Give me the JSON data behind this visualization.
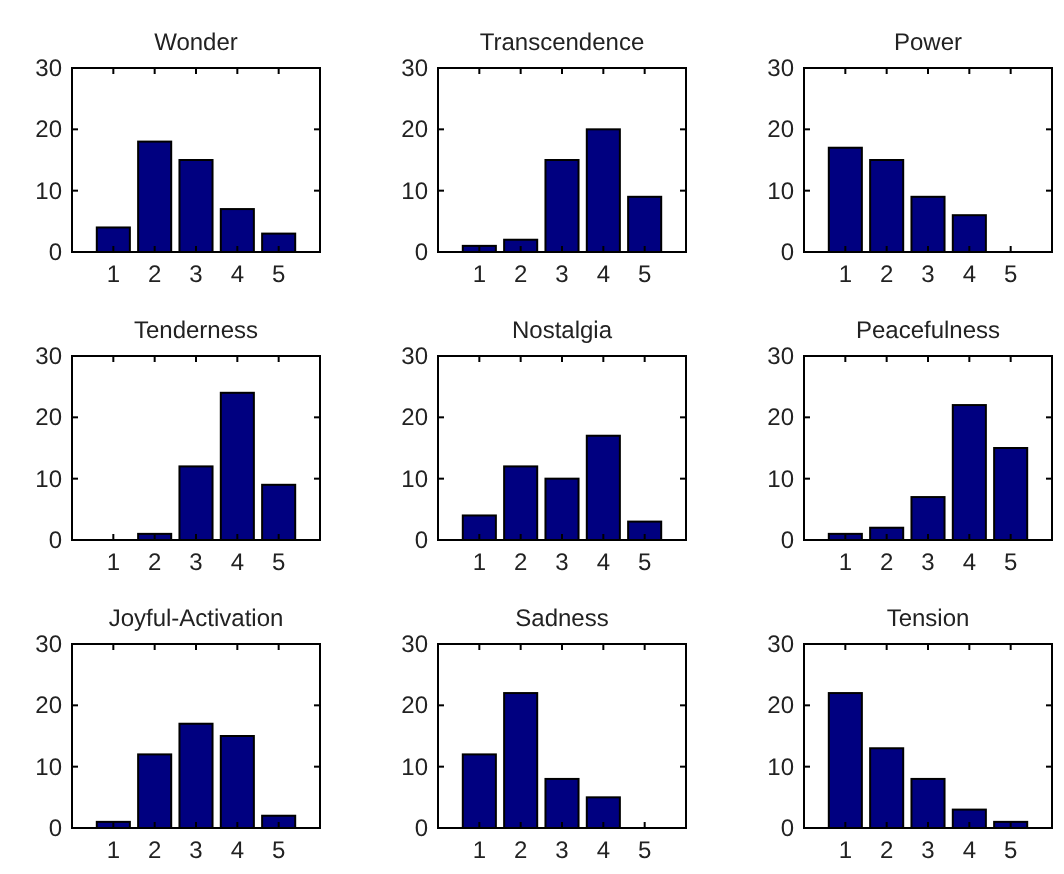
{
  "chart_data": [
    {
      "type": "bar",
      "title": "Wonder",
      "x": [
        1,
        2,
        3,
        4,
        5
      ],
      "values": [
        4,
        18,
        15,
        7,
        3
      ],
      "color": "#000080",
      "xlim": [
        0,
        6
      ],
      "xticks": [
        1,
        2,
        3,
        4,
        5
      ],
      "ylim": [
        0,
        30
      ],
      "yticks": [
        0,
        10,
        20,
        30
      ]
    },
    {
      "type": "bar",
      "title": "Transcendence",
      "x": [
        1,
        2,
        3,
        4,
        5
      ],
      "values": [
        1,
        2,
        15,
        20,
        9
      ],
      "color": "#000080",
      "xlim": [
        0,
        6
      ],
      "xticks": [
        1,
        2,
        3,
        4,
        5
      ],
      "ylim": [
        0,
        30
      ],
      "yticks": [
        0,
        10,
        20,
        30
      ]
    },
    {
      "type": "bar",
      "title": "Power",
      "x": [
        1,
        2,
        3,
        4,
        5
      ],
      "values": [
        17,
        15,
        9,
        6,
        0
      ],
      "color": "#000080",
      "xlim": [
        0,
        6
      ],
      "xticks": [
        1,
        2,
        3,
        4,
        5
      ],
      "ylim": [
        0,
        30
      ],
      "yticks": [
        0,
        10,
        20,
        30
      ]
    },
    {
      "type": "bar",
      "title": "Tenderness",
      "x": [
        1,
        2,
        3,
        4,
        5
      ],
      "values": [
        0,
        1,
        12,
        24,
        9
      ],
      "color": "#000080",
      "xlim": [
        0,
        6
      ],
      "xticks": [
        1,
        2,
        3,
        4,
        5
      ],
      "ylim": [
        0,
        30
      ],
      "yticks": [
        0,
        10,
        20,
        30
      ]
    },
    {
      "type": "bar",
      "title": "Nostalgia",
      "x": [
        1,
        2,
        3,
        4,
        5
      ],
      "values": [
        4,
        12,
        10,
        17,
        3
      ],
      "color": "#000080",
      "xlim": [
        0,
        6
      ],
      "xticks": [
        1,
        2,
        3,
        4,
        5
      ],
      "ylim": [
        0,
        30
      ],
      "yticks": [
        0,
        10,
        20,
        30
      ]
    },
    {
      "type": "bar",
      "title": "Peacefulness",
      "x": [
        1,
        2,
        3,
        4,
        5
      ],
      "values": [
        1,
        2,
        7,
        22,
        15
      ],
      "color": "#000080",
      "xlim": [
        0,
        6
      ],
      "xticks": [
        1,
        2,
        3,
        4,
        5
      ],
      "ylim": [
        0,
        30
      ],
      "yticks": [
        0,
        10,
        20,
        30
      ]
    },
    {
      "type": "bar",
      "title": "Joyful-Activation",
      "x": [
        1,
        2,
        3,
        4,
        5
      ],
      "values": [
        1,
        12,
        17,
        15,
        2
      ],
      "color": "#000080",
      "xlim": [
        0,
        6
      ],
      "xticks": [
        1,
        2,
        3,
        4,
        5
      ],
      "ylim": [
        0,
        30
      ],
      "yticks": [
        0,
        10,
        20,
        30
      ]
    },
    {
      "type": "bar",
      "title": "Sadness",
      "x": [
        1,
        2,
        3,
        4,
        5
      ],
      "values": [
        12,
        22,
        8,
        5,
        0
      ],
      "color": "#000080",
      "xlim": [
        0,
        6
      ],
      "xticks": [
        1,
        2,
        3,
        4,
        5
      ],
      "ylim": [
        0,
        30
      ],
      "yticks": [
        0,
        10,
        20,
        30
      ]
    },
    {
      "type": "bar",
      "title": "Tension",
      "x": [
        1,
        2,
        3,
        4,
        5
      ],
      "values": [
        22,
        13,
        8,
        3,
        1
      ],
      "color": "#000080",
      "xlim": [
        0,
        6
      ],
      "xticks": [
        1,
        2,
        3,
        4,
        5
      ],
      "ylim": [
        0,
        30
      ],
      "yticks": [
        0,
        10,
        20,
        30
      ]
    }
  ]
}
